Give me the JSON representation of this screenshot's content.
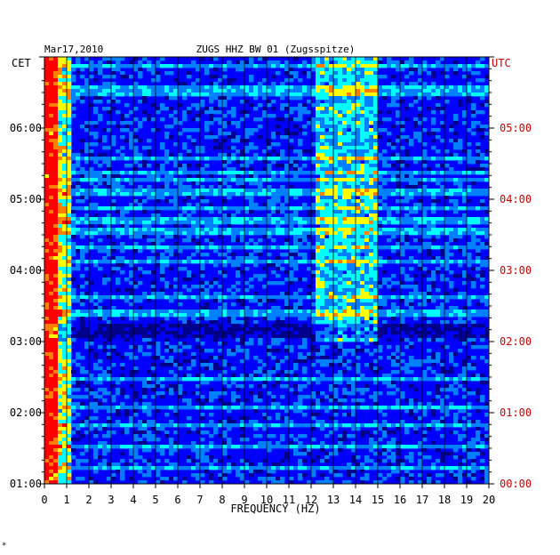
{
  "chart_data": {
    "type": "heatmap",
    "title": "ZUGS HHZ BW 01 (Zugsspitze)",
    "date": "Mar17,2010",
    "xlabel": "FREQUENCY (HZ)",
    "left_axis_label": "CET",
    "right_axis_label": "UTC",
    "xlim": [
      0,
      20
    ],
    "x_ticks": [
      "0",
      "1",
      "2",
      "3",
      "4",
      "5",
      "6",
      "7",
      "8",
      "9",
      "10",
      "11",
      "12",
      "13",
      "14",
      "15",
      "16",
      "17",
      "18",
      "19",
      "20"
    ],
    "left_ticks": [
      "06:00",
      "05:00",
      "04:00",
      "03:00",
      "02:00",
      "01:00"
    ],
    "right_ticks": [
      "05:00",
      "04:00",
      "03:00",
      "02:00",
      "01:00",
      "00:00"
    ],
    "colormap": [
      "#00008b",
      "#0000ff",
      "#0080ff",
      "#00ffff",
      "#ffff00",
      "#ff8000",
      "#ff0000"
    ],
    "left_tick_color": "#000000",
    "right_tick_color": "#cc0000",
    "footnote": "*"
  }
}
